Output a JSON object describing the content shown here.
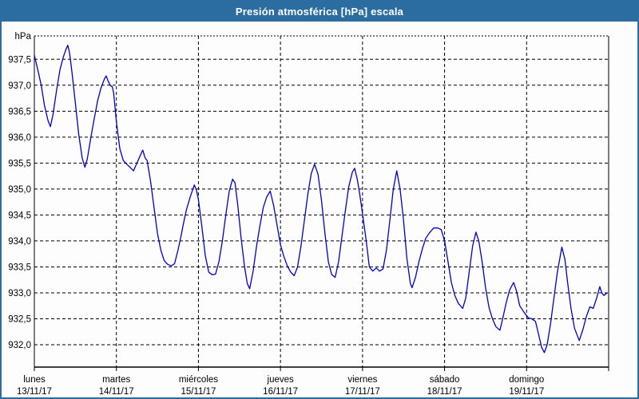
{
  "window": {
    "title": "Presión atmosférica [hPa] escala"
  },
  "colors": {
    "titlebar": "#2b6da0",
    "window_border": "#2b6da0",
    "background": "#fdfdfd",
    "line": "#0000cc",
    "grid": "#000000",
    "text": "#000000"
  },
  "chart_data": {
    "type": "line",
    "title": "Presión atmosférica [hPa] escala",
    "ylabel": "hPa",
    "xlabel": "",
    "legend": "none",
    "grid": "dashed black, horizontal every 0.5 hPa, vertical at each day boundary",
    "ylim": [
      931.57,
      937.95
    ],
    "xlim_hours": [
      0,
      168
    ],
    "y_ticks": [
      937.5,
      937.0,
      936.5,
      936.0,
      935.5,
      935.0,
      934.5,
      934.0,
      933.5,
      933.0,
      932.5,
      932.0
    ],
    "y_tick_labels": [
      "937,5",
      "937,0",
      "936,5",
      "936,0",
      "935,5",
      "935,0",
      "934,5",
      "934,0",
      "933,5",
      "933,0",
      "932,5",
      "932,0"
    ],
    "x_days": [
      {
        "name": "lunes",
        "date": "13/11/17",
        "t": 0
      },
      {
        "name": "martes",
        "date": "14/11/17",
        "t": 24
      },
      {
        "name": "miércoles",
        "date": "15/11/17",
        "t": 48
      },
      {
        "name": "jueves",
        "date": "16/11/17",
        "t": 72
      },
      {
        "name": "viernes",
        "date": "17/11/17",
        "t": 96
      },
      {
        "name": "sábado",
        "date": "18/11/17",
        "t": 120
      },
      {
        "name": "domingo",
        "date": "19/11/17",
        "t": 144
      }
    ],
    "series": [
      {
        "name": "Presión atmosférica [hPa]",
        "color": "#0000cc",
        "points": [
          [
            0,
            937.58
          ],
          [
            1,
            937.3
          ],
          [
            2,
            937.0
          ],
          [
            3,
            936.6
          ],
          [
            4,
            936.32
          ],
          [
            4.7,
            936.2
          ],
          [
            5.5,
            936.45
          ],
          [
            6.5,
            936.9
          ],
          [
            7.5,
            937.3
          ],
          [
            8.5,
            937.55
          ],
          [
            9.3,
            937.7
          ],
          [
            9.8,
            937.77
          ],
          [
            10.3,
            937.62
          ],
          [
            11,
            937.25
          ],
          [
            12,
            936.65
          ],
          [
            13,
            936.05
          ],
          [
            14,
            935.6
          ],
          [
            14.8,
            935.42
          ],
          [
            15.5,
            935.58
          ],
          [
            16.5,
            935.98
          ],
          [
            17.5,
            936.35
          ],
          [
            18.5,
            936.7
          ],
          [
            19.5,
            936.95
          ],
          [
            20.5,
            937.12
          ],
          [
            21,
            937.18
          ],
          [
            21.6,
            937.08
          ],
          [
            22.2,
            937.0
          ],
          [
            22.8,
            936.97
          ],
          [
            23.2,
            936.85
          ],
          [
            24,
            936.3
          ],
          [
            25,
            935.78
          ],
          [
            26,
            935.55
          ],
          [
            27,
            935.48
          ],
          [
            28,
            935.42
          ],
          [
            29,
            935.35
          ],
          [
            30,
            935.5
          ],
          [
            31,
            935.65
          ],
          [
            31.7,
            935.75
          ],
          [
            32.4,
            935.6
          ],
          [
            33,
            935.55
          ],
          [
            34,
            935.15
          ],
          [
            35,
            934.65
          ],
          [
            36,
            934.15
          ],
          [
            37,
            933.82
          ],
          [
            38,
            933.62
          ],
          [
            39,
            933.55
          ],
          [
            40,
            933.52
          ],
          [
            41,
            933.56
          ],
          [
            42,
            933.82
          ],
          [
            43,
            934.12
          ],
          [
            43.5,
            934.3
          ],
          [
            44.5,
            934.6
          ],
          [
            45.6,
            934.85
          ],
          [
            46.8,
            935.08
          ],
          [
            47.4,
            934.98
          ],
          [
            48,
            934.8
          ],
          [
            49,
            934.28
          ],
          [
            50,
            933.72
          ],
          [
            51,
            933.4
          ],
          [
            52,
            933.35
          ],
          [
            53,
            933.36
          ],
          [
            54,
            933.6
          ],
          [
            55,
            934.0
          ],
          [
            56,
            934.5
          ],
          [
            57,
            934.95
          ],
          [
            58,
            935.19
          ],
          [
            58.7,
            935.12
          ],
          [
            59.5,
            934.7
          ],
          [
            60.5,
            934.05
          ],
          [
            61.5,
            933.5
          ],
          [
            62.3,
            933.18
          ],
          [
            63,
            933.08
          ],
          [
            64,
            933.42
          ],
          [
            65,
            933.9
          ],
          [
            66,
            934.3
          ],
          [
            67,
            934.65
          ],
          [
            68,
            934.85
          ],
          [
            69,
            934.96
          ],
          [
            70,
            934.68
          ],
          [
            71,
            934.3
          ],
          [
            72,
            933.93
          ],
          [
            73,
            933.7
          ],
          [
            74,
            933.52
          ],
          [
            75,
            933.4
          ],
          [
            76,
            933.33
          ],
          [
            77,
            933.5
          ],
          [
            78,
            933.9
          ],
          [
            79,
            934.4
          ],
          [
            80,
            934.9
          ],
          [
            81,
            935.3
          ],
          [
            82,
            935.48
          ],
          [
            83,
            935.28
          ],
          [
            84,
            934.78
          ],
          [
            85,
            934.15
          ],
          [
            86,
            933.6
          ],
          [
            87,
            933.35
          ],
          [
            88,
            933.3
          ],
          [
            89,
            933.6
          ],
          [
            90,
            934.1
          ],
          [
            91,
            934.6
          ],
          [
            92,
            935.05
          ],
          [
            93,
            935.32
          ],
          [
            93.7,
            935.4
          ],
          [
            94.5,
            935.18
          ],
          [
            95.2,
            934.9
          ],
          [
            96,
            934.52
          ],
          [
            97,
            934.05
          ],
          [
            98,
            933.5
          ],
          [
            99,
            933.42
          ],
          [
            100,
            933.48
          ],
          [
            101,
            933.42
          ],
          [
            102,
            933.46
          ],
          [
            103,
            933.82
          ],
          [
            104,
            934.4
          ],
          [
            105,
            935.0
          ],
          [
            106,
            935.35
          ],
          [
            107,
            935.0
          ],
          [
            108,
            934.4
          ],
          [
            109,
            933.65
          ],
          [
            110,
            933.18
          ],
          [
            110.5,
            933.1
          ],
          [
            111.5,
            933.3
          ],
          [
            112.5,
            933.6
          ],
          [
            113.5,
            933.85
          ],
          [
            114.5,
            934.05
          ],
          [
            115.5,
            934.15
          ],
          [
            116.8,
            934.25
          ],
          [
            118,
            934.25
          ],
          [
            119,
            934.22
          ],
          [
            120,
            934.0
          ],
          [
            121,
            933.6
          ],
          [
            122,
            933.2
          ],
          [
            123,
            932.95
          ],
          [
            124,
            932.8
          ],
          [
            125.3,
            932.7
          ],
          [
            126.2,
            932.9
          ],
          [
            127.2,
            933.4
          ],
          [
            128.2,
            933.9
          ],
          [
            129.2,
            934.17
          ],
          [
            130,
            934.0
          ],
          [
            131,
            933.6
          ],
          [
            132,
            933.1
          ],
          [
            133,
            932.72
          ],
          [
            134,
            932.5
          ],
          [
            135,
            932.35
          ],
          [
            136.2,
            932.28
          ],
          [
            137,
            932.5
          ],
          [
            138,
            932.8
          ],
          [
            139,
            933.05
          ],
          [
            140.2,
            933.2
          ],
          [
            141,
            933.05
          ],
          [
            142,
            932.75
          ],
          [
            143.3,
            932.62
          ],
          [
            144.5,
            932.52
          ],
          [
            145.5,
            932.5
          ],
          [
            146.6,
            932.45
          ],
          [
            147.5,
            932.2
          ],
          [
            148.4,
            931.95
          ],
          [
            149.2,
            931.85
          ],
          [
            150,
            932.0
          ],
          [
            151,
            932.4
          ],
          [
            152,
            932.9
          ],
          [
            153,
            933.4
          ],
          [
            154.3,
            933.88
          ],
          [
            155.2,
            933.65
          ],
          [
            156,
            933.2
          ],
          [
            157,
            932.7
          ],
          [
            158,
            932.32
          ],
          [
            159.4,
            932.08
          ],
          [
            160.5,
            932.3
          ],
          [
            161.5,
            932.55
          ],
          [
            162.5,
            932.73
          ],
          [
            163.5,
            932.7
          ],
          [
            164.5,
            932.9
          ],
          [
            165.4,
            933.12
          ],
          [
            166,
            933.0
          ],
          [
            166.6,
            932.95
          ],
          [
            167.6,
            933.0
          ]
        ]
      }
    ]
  }
}
